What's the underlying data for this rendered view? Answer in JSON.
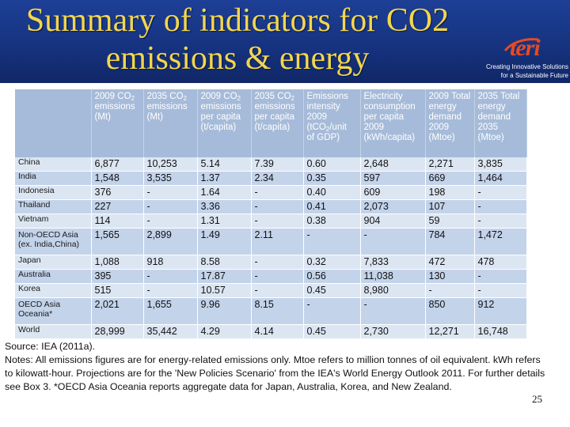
{
  "title": {
    "line1": "Summary of indicators for CO2",
    "line2": "emissions & energy"
  },
  "logo": {
    "wordmark": "teri",
    "tagline_line1": "Creating Innovative Solutions",
    "tagline_line2": "for a Sustainable Future",
    "color": "#e94a20"
  },
  "table": {
    "headers": [
      [
        ""
      ],
      [
        "2009 CO",
        "2",
        " emissions (Mt)"
      ],
      [
        "2035 CO",
        "2",
        " emissions (Mt)"
      ],
      [
        "2009 CO",
        "2",
        " emissions per capita (t/capita)"
      ],
      [
        "2035 CO",
        "2",
        " emissions per capita (t/capita)"
      ],
      [
        "Emissions intensity 2009 (tCO",
        "2",
        "/unit of GDP)"
      ],
      [
        "Electricity consumption per capita 2009 (kWh/capita)"
      ],
      [
        "2009 Total energy demand 2009 (Mtoe)"
      ],
      [
        "2035 Total energy demand 2035 (Mtoe)"
      ]
    ],
    "rows": [
      {
        "name": [
          "China"
        ],
        "values": [
          "6,877",
          "10,253",
          "5.14",
          "7.39",
          "0.60",
          "2,648",
          "2,271",
          "3,835"
        ]
      },
      {
        "name": [
          "India"
        ],
        "values": [
          "1,548",
          "3,535",
          "1.37",
          "2.34",
          "0.35",
          "597",
          "669",
          "1,464"
        ]
      },
      {
        "name": [
          "Indonesia"
        ],
        "values": [
          "376",
          "-",
          "1.64",
          "-",
          "0.40",
          "609",
          "198",
          "-"
        ]
      },
      {
        "name": [
          "Thailand"
        ],
        "values": [
          "227",
          "-",
          "3.36",
          "-",
          "0.41",
          "2,073",
          "107",
          "-"
        ]
      },
      {
        "name": [
          "Vietnam"
        ],
        "values": [
          "114",
          "-",
          "1.31",
          "-",
          "0.38",
          "904",
          "59",
          "-"
        ]
      },
      {
        "name": [
          "Non-OECD Asia",
          "(ex. India,China)"
        ],
        "values": [
          "1,565",
          "2,899",
          "1.49",
          "2.11",
          "-",
          "-",
          "784",
          "1,472"
        ]
      },
      {
        "name": [
          "Japan"
        ],
        "values": [
          "1,088",
          "918",
          "8.58",
          "-",
          "0.32",
          "7,833",
          "472",
          "478"
        ]
      },
      {
        "name": [
          "Australia"
        ],
        "values": [
          "395",
          "-",
          "17.87",
          "-",
          "0.56",
          "11,038",
          "130",
          "-"
        ]
      },
      {
        "name": [
          "Korea"
        ],
        "values": [
          "515",
          "-",
          "10.57",
          "-",
          "0.45",
          "8,980",
          "-",
          "-"
        ]
      },
      {
        "name": [
          "OECD Asia",
          "Oceania*"
        ],
        "values": [
          "2,021",
          "1,655",
          "9.96",
          "8.15",
          "-",
          "-",
          "850",
          "912"
        ]
      },
      {
        "name": [
          "World"
        ],
        "values": [
          "28,999",
          "35,442",
          "4.29",
          "4.14",
          "0.45",
          "2,730",
          "12,271",
          "16,748"
        ]
      }
    ]
  },
  "notes": {
    "source": "Source: IEA (2011a).",
    "text": "Notes: All emissions figures are for energy-related emissions only. Mtoe refers to million tonnes of oil equivalent. kWh refers to kilowatt-hour. Projections are for the 'New Policies Scenario' from the IEA's World Energy Outlook 2011. For further details see Box 3. *OECD Asia Oceania reports aggregate data for Japan, Australia, Korea, and New Zealand."
  },
  "page_number": "25"
}
